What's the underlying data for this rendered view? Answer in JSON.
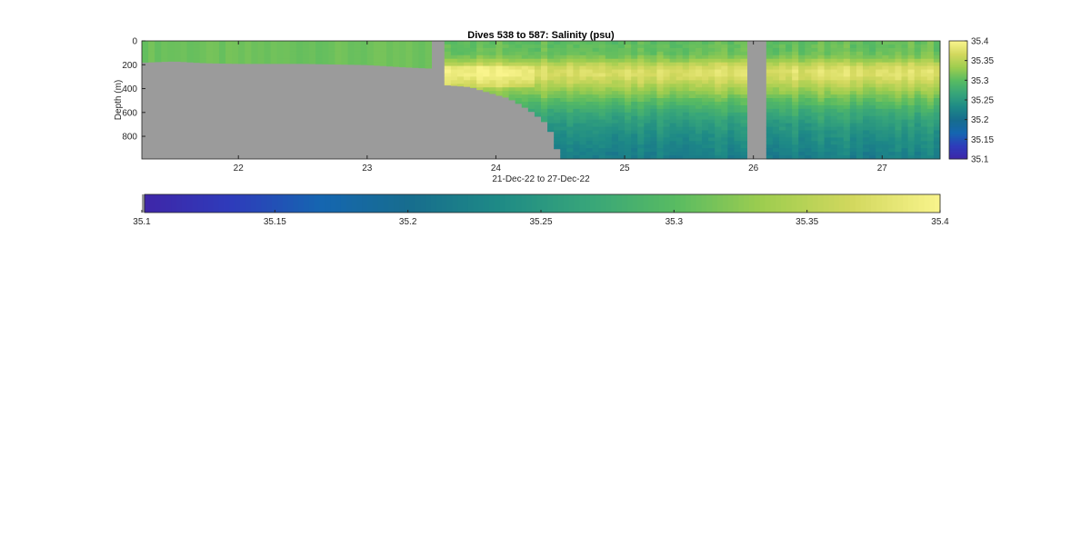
{
  "chart_data": {
    "type": "heatmap",
    "title": "Dives 538 to 587: Salinity (psu)",
    "xlabel": "21-Dec-22 to 27-Dec-22",
    "ylabel": "Depth (m)",
    "xlim": [
      21.25,
      27.45
    ],
    "ylim": [
      0,
      990
    ],
    "y_reversed": true,
    "x_ticks": [
      22,
      23,
      24,
      25,
      26,
      27
    ],
    "x_tick_labels": [
      "22",
      "23",
      "24",
      "25",
      "26",
      "27"
    ],
    "y_ticks": [
      0,
      200,
      400,
      600,
      800
    ],
    "y_tick_labels": [
      "0",
      "200",
      "400",
      "600",
      "800"
    ],
    "colorbar_right": {
      "ticks": [
        35.1,
        35.15,
        35.2,
        35.25,
        35.3,
        35.35,
        35.4
      ],
      "tick_labels": [
        "35.1",
        "35.15",
        "35.2",
        "35.25",
        "35.3",
        "35.35",
        "35.4"
      ]
    },
    "colorbar_bottom": {
      "ticks": [
        35.1,
        35.15,
        35.2,
        35.25,
        35.3,
        35.35,
        35.4
      ],
      "tick_labels": [
        "35.1",
        "35.15",
        "35.2",
        "35.25",
        "35.3",
        "35.35",
        "35.4"
      ]
    },
    "clim": [
      35.1,
      35.4
    ],
    "colormap": [
      "#3e26a8",
      "#2e3cbb",
      "#1566b0",
      "#176d8e",
      "#1e8a86",
      "#37a57a",
      "#58bb62",
      "#9ecd4f",
      "#d2d85e",
      "#f9f48c"
    ],
    "nodata_color": "#9b9b9b",
    "gaps": [
      [
        23.5,
        23.62
      ],
      [
        25.97,
        26.09
      ]
    ],
    "bottom_depth": [
      [
        21.25,
        180
      ],
      [
        21.5,
        170
      ],
      [
        21.75,
        185
      ],
      [
        22.0,
        190
      ],
      [
        22.5,
        190
      ],
      [
        23.0,
        200
      ],
      [
        23.3,
        220
      ],
      [
        23.5,
        230
      ],
      [
        23.62,
        370
      ],
      [
        23.8,
        385
      ],
      [
        24.0,
        450
      ],
      [
        24.1,
        480
      ],
      [
        24.2,
        540
      ],
      [
        24.3,
        610
      ],
      [
        24.4,
        700
      ],
      [
        24.45,
        820
      ],
      [
        24.5,
        990
      ]
    ],
    "profile": [
      [
        0,
        35.305
      ],
      [
        100,
        35.31
      ],
      [
        150,
        35.325
      ],
      [
        210,
        35.365
      ],
      [
        270,
        35.38
      ],
      [
        330,
        35.365
      ],
      [
        400,
        35.34
      ],
      [
        500,
        35.305
      ],
      [
        600,
        35.275
      ],
      [
        700,
        35.255
      ],
      [
        800,
        35.24
      ],
      [
        900,
        35.23
      ],
      [
        990,
        35.22
      ]
    ]
  }
}
